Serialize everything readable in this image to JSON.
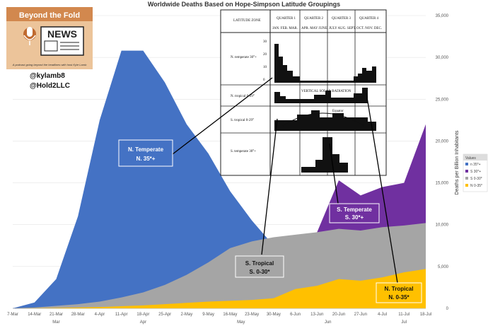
{
  "chart_data": {
    "type": "area",
    "title": "Worldwide Deaths Based on Hope-Simpson Latitude Groupings",
    "ylabel": "Deaths per Billion Inhabitants",
    "ylim": [
      0,
      35000
    ],
    "yticks": [
      "0",
      "5,000",
      "10,000",
      "15,000",
      "20,000",
      "25,000",
      "30,000",
      "35,000"
    ],
    "categories": [
      "7-Mar",
      "14-Mar",
      "21-Mar",
      "28-Mar",
      "4-Apr",
      "11-Apr",
      "18-Apr",
      "25-Apr",
      "2-May",
      "9-May",
      "16-May",
      "23-May",
      "30-May",
      "6-Jun",
      "13-Jun",
      "20-Jun",
      "27-Jun",
      "4-Jul",
      "11-Jul",
      "18-Jul"
    ],
    "months": [
      "Mar",
      "Apr",
      "May",
      "Jun",
      "Jul"
    ],
    "series": [
      {
        "name": "N 35*+",
        "color": "#4472C4",
        "values": [
          0,
          700,
          3500,
          11000,
          22500,
          30800,
          30800,
          27000,
          22000,
          18500,
          14000,
          10500,
          7500,
          null,
          null,
          null,
          null,
          null,
          null,
          null
        ]
      },
      {
        "name": "S 30*+",
        "color": "#7030A0",
        "values": [
          null,
          null,
          null,
          null,
          null,
          null,
          null,
          null,
          null,
          null,
          null,
          null,
          null,
          null,
          null,
          15300,
          13500,
          14500,
          15000,
          22000
        ]
      },
      {
        "name": "S 0-30*",
        "color": "#A5A5A5",
        "values": [
          0,
          100,
          300,
          500,
          800,
          1300,
          1900,
          2800,
          4000,
          5500,
          7200,
          8000,
          8500,
          8800,
          9100,
          9500,
          9300,
          9700,
          9900,
          10200
        ]
      },
      {
        "name": "N 0-35*",
        "color": "#FFC000",
        "values": [
          0,
          20,
          50,
          100,
          150,
          250,
          350,
          500,
          650,
          800,
          900,
          1000,
          1200,
          2300,
          2700,
          3500,
          3300,
          3700,
          4300,
          4700
        ]
      }
    ],
    "legend": {
      "title": "Values",
      "position": "right",
      "entries": [
        "n 35*+",
        "S 30*+",
        "S 0-30*",
        "N 0-35*"
      ]
    },
    "annotations": [
      {
        "label": "N. Temperate\nN. 35*+"
      },
      {
        "label": "S. Temperate\nS. 30*+"
      },
      {
        "label": "S. Tropical\nS. 0-30*"
      },
      {
        "label": "N. Tropical\nN. 0-35*"
      }
    ]
  },
  "branding": {
    "podcast_title": "Beyond the Fold",
    "news_word": "NEWS",
    "tagline": "A podcast going beyond the headlines with host Kyle Lamb",
    "handle1": "@kylamb8",
    "handle2": "@Hold2LLC"
  },
  "inset_table": {
    "headers": [
      "LATITUDE ZONE",
      "QUARTER 1",
      "QUARTER 2",
      "QUARTER 3",
      "QUARTER 4"
    ],
    "months": [
      "JAN. FEB. MAR.",
      "APR. MAY JUNE",
      "JULY AUG. SEPT.",
      "OCT. NOV. DEC."
    ],
    "zones": [
      "N. temperate 30°+",
      "N. tropical 0-29°",
      "S. tropical 0-29°",
      "S. temperate 30°+"
    ],
    "y_labels": [
      "30",
      "20",
      "10",
      "0"
    ],
    "notes": [
      "VERTICAL SOLAR RADIATION",
      "Equator"
    ]
  },
  "colors": {
    "blue": "#4472C4",
    "purple": "#7030A0",
    "gray": "#A5A5A5",
    "gold": "#FFC000"
  }
}
